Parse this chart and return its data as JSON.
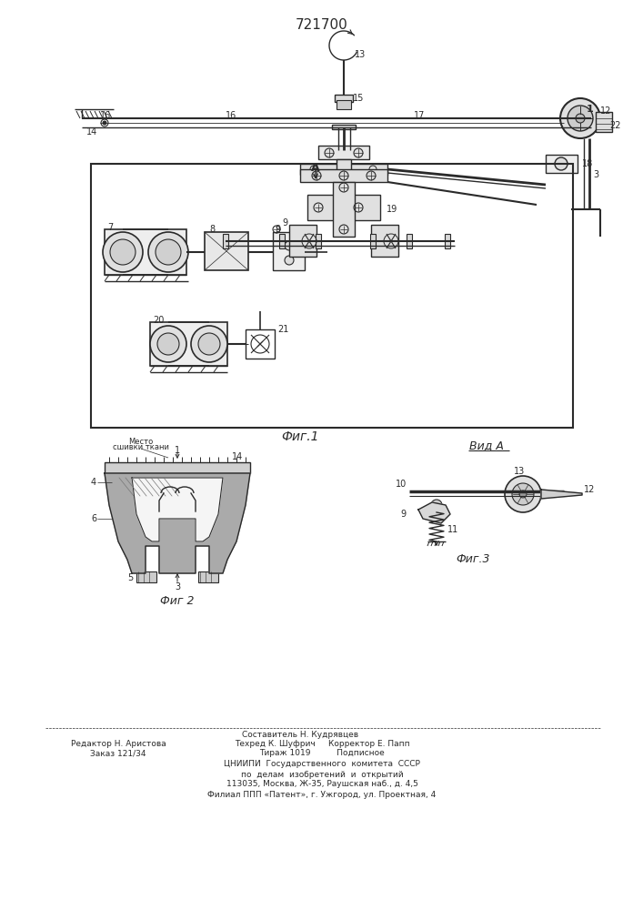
{
  "patent_number": "721700",
  "bg": "#ffffff",
  "lc": "#2a2a2a",
  "hatch_color": "#555555",
  "fig1_label": "Фиг.1",
  "fig2_label": "Фиг 2",
  "fig3_label": "Фиг.3",
  "view_label": "Вид A",
  "place_text1": "Место",
  "place_text2": "сшивки ткани",
  "label_A": "A",
  "bottom_left": [
    "Редактор Н. Аристова",
    "Заказ 121/34"
  ],
  "bottom_mid": [
    "Составитель Н. Кудрявцев",
    "Техред К. Шуфрич     Корректор Е. Папп",
    "Тираж 1019          Подписное"
  ],
  "bottom_center": [
    "ЦНИИПИ  Государственного  комитета  СССР",
    "по  делам  изобретений  и  открытий",
    "113035, Москва, Ж-35, Раушская наб., д. 4,5",
    "Филиал ППП «Патент», г. Ужгород, ул. Проектная, 4"
  ]
}
